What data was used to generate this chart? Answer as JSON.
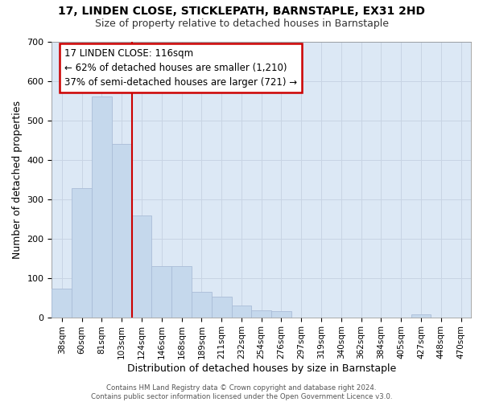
{
  "title1": "17, LINDEN CLOSE, STICKLEPATH, BARNSTAPLE, EX31 2HD",
  "title2": "Size of property relative to detached houses in Barnstaple",
  "xlabel": "Distribution of detached houses by size in Barnstaple",
  "ylabel": "Number of detached properties",
  "categories": [
    "38sqm",
    "60sqm",
    "81sqm",
    "103sqm",
    "124sqm",
    "146sqm",
    "168sqm",
    "189sqm",
    "211sqm",
    "232sqm",
    "254sqm",
    "276sqm",
    "297sqm",
    "319sqm",
    "340sqm",
    "362sqm",
    "384sqm",
    "405sqm",
    "427sqm",
    "448sqm",
    "470sqm"
  ],
  "values": [
    72,
    328,
    560,
    440,
    258,
    130,
    130,
    65,
    53,
    30,
    18,
    15,
    0,
    0,
    0,
    0,
    0,
    0,
    7,
    0,
    0
  ],
  "bar_color": "#c5d8ec",
  "bar_edgecolor": "#aabdd8",
  "vline_color": "#cc0000",
  "vline_x": 3.5,
  "annotation_line1": "17 LINDEN CLOSE: 116sqm",
  "annotation_line2": "← 62% of detached houses are smaller (1,210)",
  "annotation_line3": "37% of semi-detached houses are larger (721) →",
  "annotation_box_edgecolor": "#cc0000",
  "annotation_box_facecolor": "#ffffff",
  "ylim_max": 700,
  "yticks": [
    0,
    100,
    200,
    300,
    400,
    500,
    600,
    700
  ],
  "grid_color": "#c8d4e4",
  "plot_bg": "#dce8f5",
  "fig_bg": "#ffffff",
  "footer_text": "Contains HM Land Registry data © Crown copyright and database right 2024.\nContains public sector information licensed under the Open Government Licence v3.0."
}
